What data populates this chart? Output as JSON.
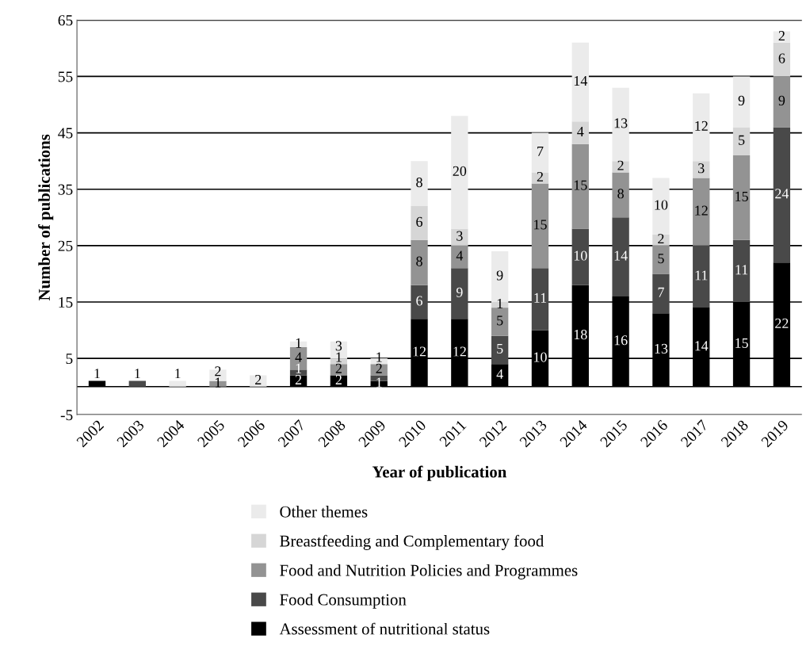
{
  "chart_data": {
    "type": "bar",
    "stacked": true,
    "xlabel": "Year of publication",
    "ylabel": "Number of publications",
    "categories": [
      "2002",
      "2003",
      "2004",
      "2005",
      "2006",
      "2007",
      "2008",
      "2009",
      "2010",
      "2011",
      "2012",
      "2013",
      "2014",
      "2015",
      "2016",
      "2017",
      "2018",
      "2019"
    ],
    "series": [
      {
        "name": "Assessment of nutritional status",
        "color": "#000000",
        "values": [
          1,
          null,
          null,
          null,
          null,
          2,
          2,
          1,
          12,
          12,
          4,
          10,
          18,
          16,
          13,
          14,
          15,
          22
        ],
        "value_labels": [
          "1",
          null,
          null,
          null,
          null,
          "2",
          "2",
          "1",
          "12",
          "12",
          "4",
          "10",
          "18",
          "16",
          "13",
          "14",
          "15",
          "22"
        ]
      },
      {
        "name": "Food Consumption",
        "color": "#494949",
        "values": [
          null,
          1,
          null,
          null,
          null,
          1,
          null,
          1,
          6,
          9,
          5,
          11,
          10,
          14,
          7,
          11,
          11,
          24
        ],
        "value_labels": [
          null,
          "1",
          null,
          null,
          null,
          "1",
          null,
          null,
          "6",
          "9",
          "5",
          "11",
          "10",
          "14",
          "7",
          "11",
          "11",
          "24"
        ]
      },
      {
        "name": "Food and Nutrition Policies and Programmes",
        "color": "#939393",
        "values": [
          null,
          null,
          null,
          1,
          null,
          4,
          2,
          2,
          8,
          4,
          5,
          15,
          15,
          8,
          5,
          12,
          15,
          9
        ],
        "value_labels": [
          null,
          null,
          null,
          "1",
          null,
          "4",
          "2",
          "2",
          "8",
          "4",
          "5",
          "15",
          "15",
          "8",
          "5",
          "12",
          "15",
          "9"
        ]
      },
      {
        "name": "Breastfeeding and Complementary food",
        "color": "#d6d6d6",
        "values": [
          null,
          null,
          null,
          null,
          null,
          null,
          1,
          null,
          6,
          3,
          1,
          2,
          4,
          2,
          2,
          3,
          5,
          6
        ],
        "value_labels": [
          null,
          null,
          null,
          null,
          null,
          null,
          "1",
          null,
          "6",
          "3",
          "1",
          "2",
          "4",
          "2",
          "2",
          "3",
          "5",
          "6"
        ]
      },
      {
        "name": "Other themes",
        "color": "#ebebeb",
        "values": [
          null,
          null,
          1,
          2,
          2,
          1,
          3,
          1,
          8,
          20,
          9,
          7,
          14,
          13,
          10,
          12,
          9,
          2
        ],
        "value_labels": [
          null,
          null,
          "1",
          "2",
          "2",
          "1",
          "3",
          "1",
          "8",
          "20",
          "9",
          "7",
          "14",
          "13",
          "10",
          "12",
          "9",
          "2"
        ]
      }
    ],
    "ylim": [
      -5,
      65
    ],
    "yticks": [
      -5,
      5,
      15,
      25,
      35,
      45,
      55,
      65
    ],
    "grid": "y",
    "legend": "bottom"
  }
}
